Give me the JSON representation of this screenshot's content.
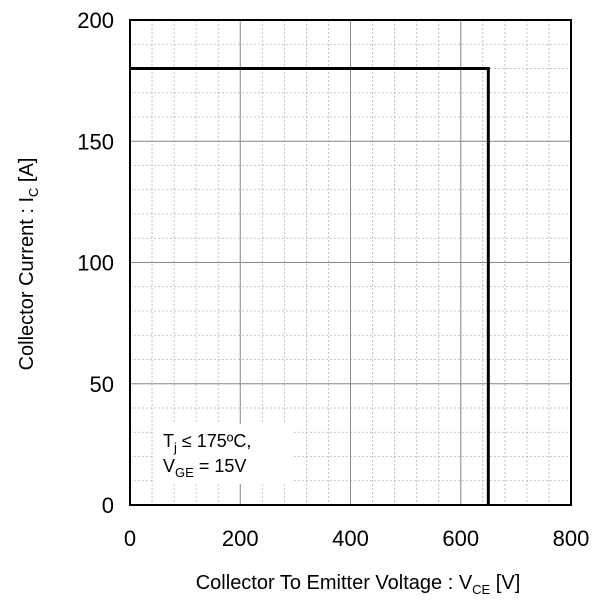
{
  "chart_data": {
    "type": "line",
    "title": "",
    "xlabel": {
      "main": "Collector To Emitter Voltage : V",
      "sub": "CE",
      "unit": " [V]"
    },
    "ylabel": {
      "main": "Collector Current : I",
      "sub": "C",
      "unit": " [A]"
    },
    "xlim": [
      0,
      800
    ],
    "ylim": [
      0,
      200
    ],
    "x_ticks": [
      0,
      200,
      400,
      600,
      800
    ],
    "y_ticks": [
      0,
      50,
      100,
      150,
      200
    ],
    "x_tick_labels": [
      "0",
      "200",
      "400",
      "600",
      "800"
    ],
    "y_tick_labels": [
      "0",
      "50",
      "100",
      "150",
      "200"
    ],
    "grid": {
      "major": true,
      "minor": true,
      "x_minor_step": 40,
      "y_minor_step": 10
    },
    "series": [
      {
        "x": [
          0,
          650,
          650
        ],
        "y": [
          180,
          180,
          0
        ],
        "color": "#000000"
      }
    ],
    "annotation": {
      "line1": {
        "a": "T",
        "sub": "j",
        "b": " ≤ 175ºC,"
      },
      "line2": {
        "a": "V",
        "sub": "GE",
        "b": " = 15V"
      }
    }
  }
}
